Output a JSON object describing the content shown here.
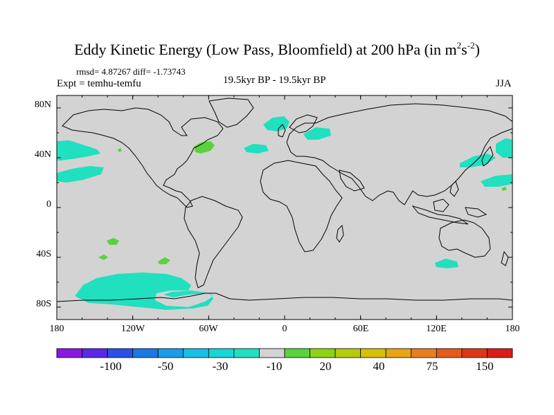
{
  "title_main": "Eddy Kinetic Energy (Low Pass, Bloomfield) at 200 hPa (in m",
  "title_sup1": "2",
  "title_mid": "s",
  "title_sup2": "-2",
  "title_end": ")",
  "stats": "rmsd= 4.87267 diff= -1.73743",
  "left_label": "Expt = temhu-temfu",
  "center_label": "19.5kyr BP - 19.5kyr BP",
  "right_label": "JJA",
  "colors": {
    "land_ocean": "#d3d3d3",
    "coastline": "#000000",
    "cyan_neg": "#20e0c0",
    "green_pos": "#5ad23c"
  },
  "map_data": {
    "projection": "cylindrical-equidistant",
    "lon_range": [
      -180,
      180
    ],
    "lat_range": [
      -90,
      90
    ],
    "lat_ticks": [
      "80N",
      "40N",
      "0",
      "40S",
      "80S"
    ],
    "lon_ticks": [
      "180",
      "120W",
      "60W",
      "0",
      "60E",
      "120E",
      "180"
    ]
  },
  "colorbar": {
    "colors": [
      "#8a18e0",
      "#5a28e6",
      "#2a50e6",
      "#1a78e6",
      "#1a9ce6",
      "#18bee6",
      "#18d6d6",
      "#20e0c0",
      "#d3d3d3",
      "#5ad23c",
      "#8ed214",
      "#b4cc0c",
      "#d8c00a",
      "#e6a614",
      "#e6801e",
      "#e25c1e",
      "#dc3818",
      "#d81e18"
    ],
    "labels": [
      "-100",
      "-50",
      "-30",
      "-10",
      "20",
      "40",
      "75",
      "150"
    ]
  }
}
